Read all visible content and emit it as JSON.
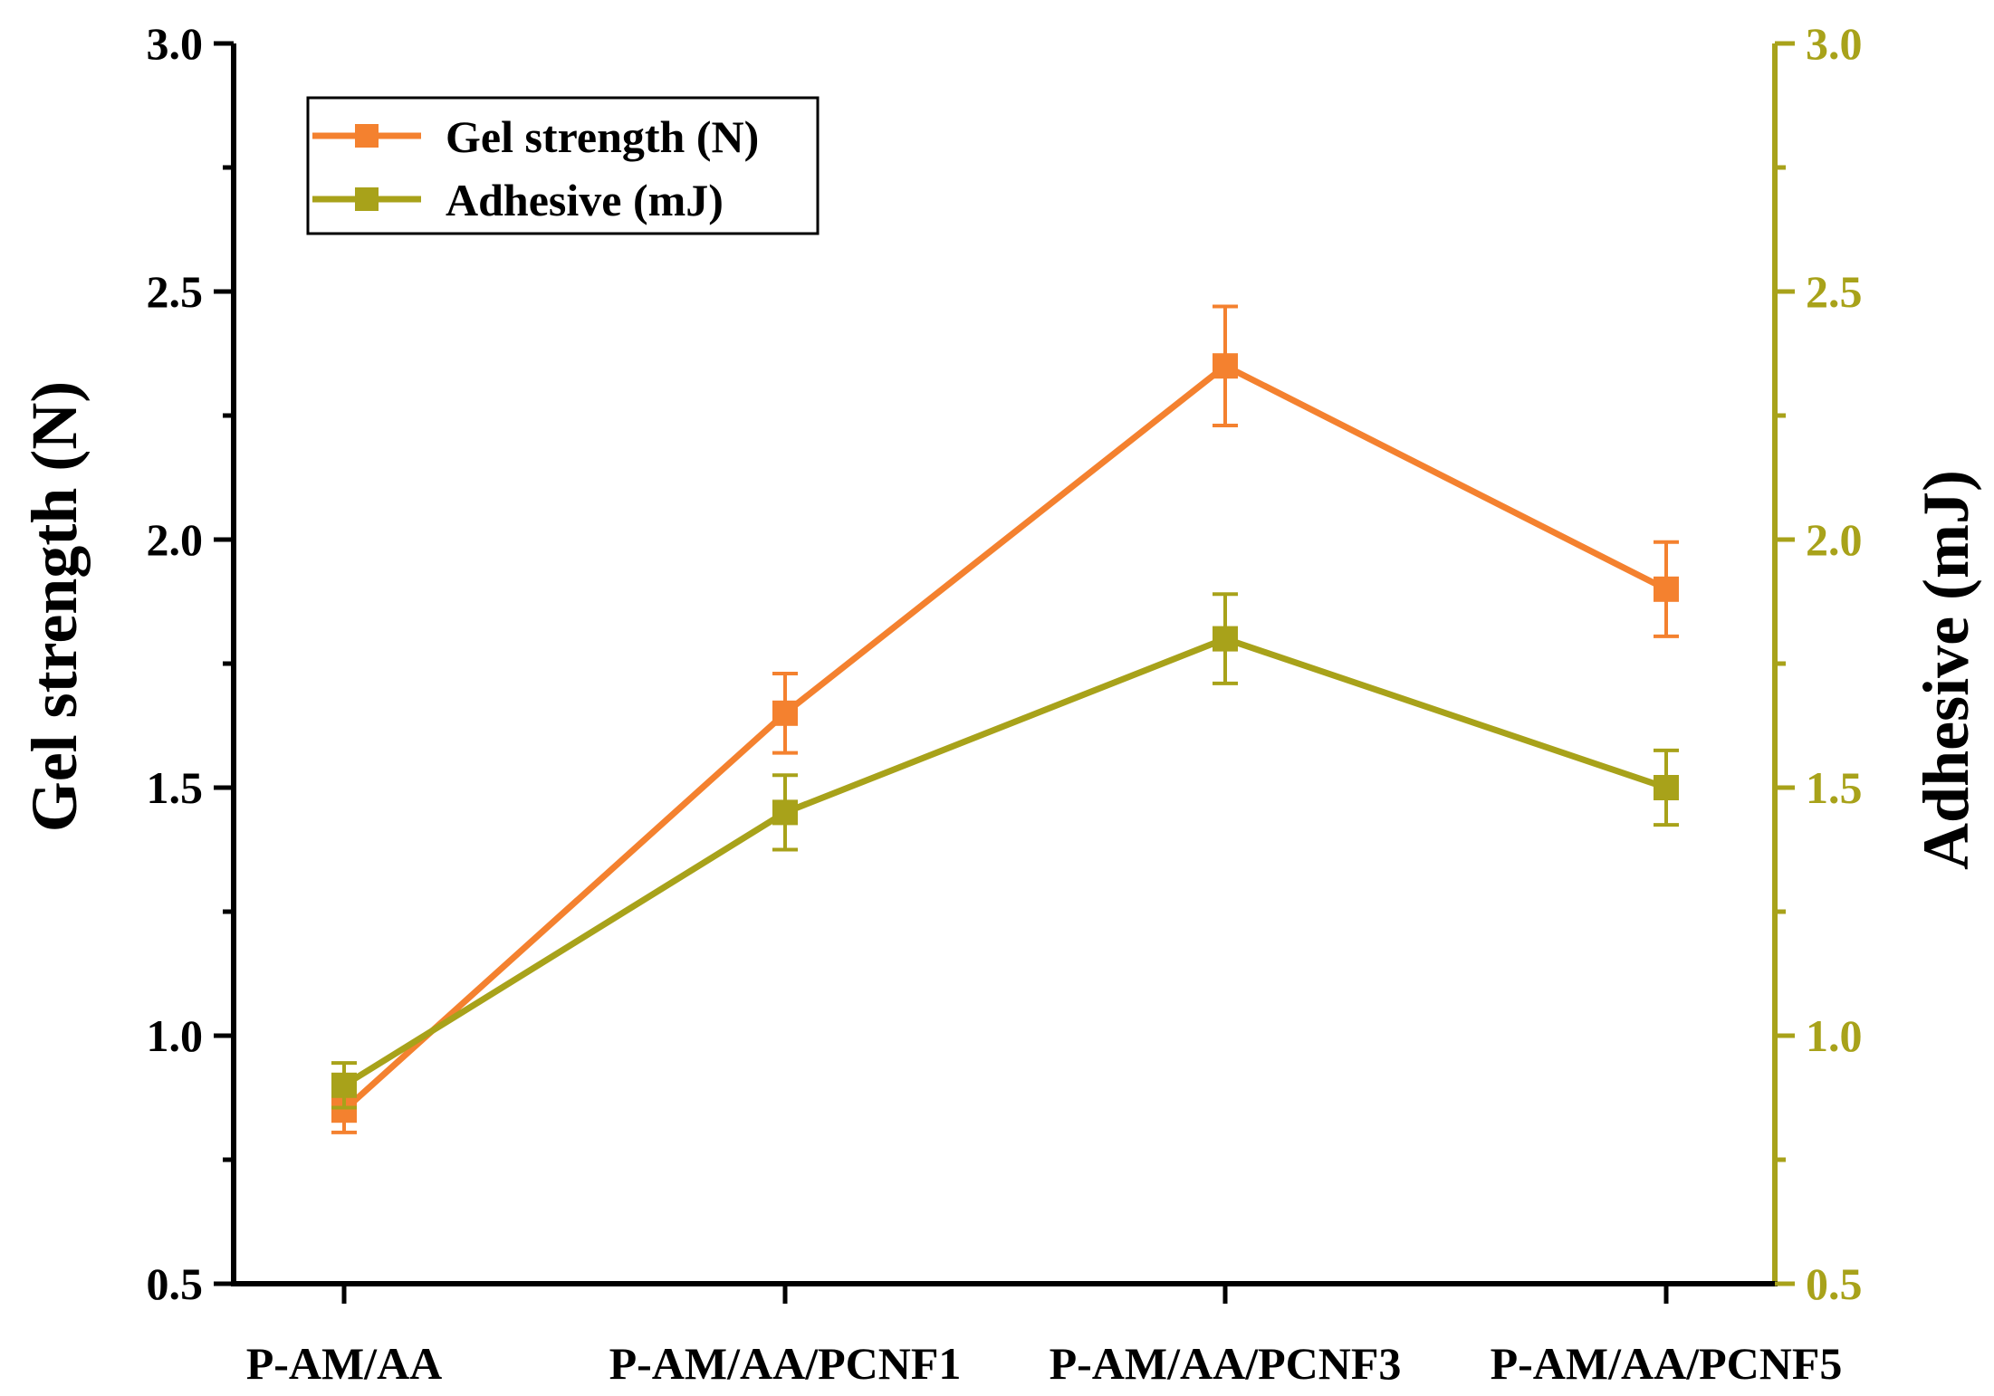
{
  "chart_data": {
    "type": "line",
    "categories": [
      "P-AM/AA",
      "P-AM/AA/PCNF1",
      "P-AM/AA/PCNF3",
      "P-AM/AA/PCNF5"
    ],
    "y_left": {
      "label": "Gel strength (N)",
      "lim": [
        0.5,
        3.0
      ],
      "ticks": [
        "0.5",
        "1.0",
        "1.5",
        "2.0",
        "2.5",
        "3.0"
      ],
      "color": "#000000"
    },
    "y_right": {
      "label": "Adhesive (mJ)",
      "lim": [
        0.5,
        3.0
      ],
      "ticks": [
        "0.5",
        "1.0",
        "1.5",
        "2.0",
        "2.5",
        "3.0"
      ],
      "color": "#a8a21a"
    },
    "series": [
      {
        "name": "Gel strength (N)",
        "axis": "left",
        "color": "#f4812f",
        "values": [
          0.85,
          1.65,
          2.35,
          1.9
        ],
        "errors": [
          0.045,
          0.08,
          0.12,
          0.095
        ]
      },
      {
        "name": "Adhesive (mJ)",
        "axis": "right",
        "color": "#a8a21a",
        "values": [
          0.9,
          1.45,
          1.8,
          1.5
        ],
        "errors": [
          0.045,
          0.075,
          0.09,
          0.075
        ]
      }
    ],
    "legend": {
      "position": "top-left",
      "entries": [
        "Gel strength (N)",
        "Adhesive (mJ)"
      ]
    },
    "grid": false
  }
}
